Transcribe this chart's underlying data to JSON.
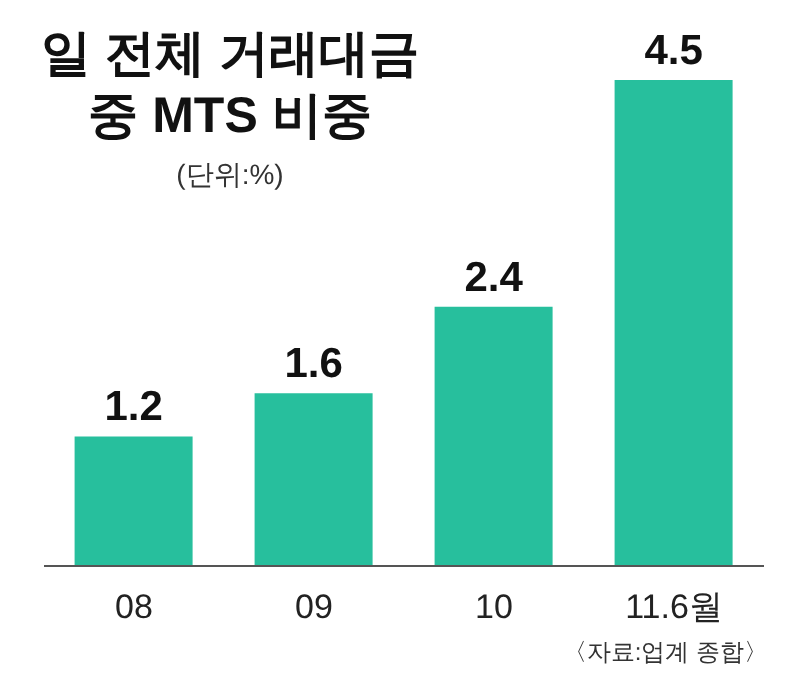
{
  "chart_data": {
    "type": "bar",
    "title": "일 전체 거래대금\n중 MTS 비중",
    "subtitle": "(단위:%)",
    "categories": [
      "08",
      "09",
      "10",
      "11.6월"
    ],
    "values": [
      1.2,
      1.6,
      2.4,
      4.5
    ],
    "color": "#27bf9d",
    "data_labels": true,
    "grid": false,
    "annotations": [
      "〈자료:업계 종합〉"
    ]
  }
}
